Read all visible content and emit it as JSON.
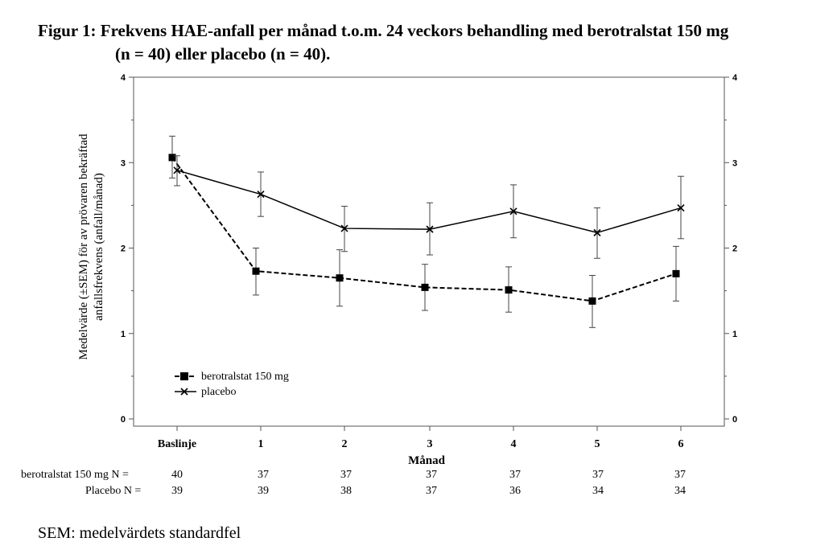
{
  "title": {
    "line1": "Figur 1: Frekvens HAE-anfall per månad t.o.m. 24 veckors behandling med berotralstat 150 mg",
    "line2": "(n = 40) eller placebo (n = 40)."
  },
  "chart_data": {
    "type": "line",
    "categories": [
      "Baslinje",
      "1",
      "2",
      "3",
      "4",
      "5",
      "6"
    ],
    "xlabel": "Månad",
    "ylabel_line1": "Medelvärde (±SEM) för av prövaren bekräftad",
    "ylabel_line2": "anfallsfrekvens (anfall/månad)",
    "ylim": [
      0,
      4
    ],
    "yticks": [
      "0",
      "1",
      "2",
      "3",
      "4"
    ],
    "legend_position": "bottom-left",
    "series": [
      {
        "name": "berotralstat 150 mg",
        "marker": "square",
        "line_style": "dashed",
        "values": [
          3.06,
          1.73,
          1.65,
          1.54,
          1.51,
          1.38,
          1.7
        ],
        "sem_low": [
          2.82,
          1.45,
          1.32,
          1.27,
          1.25,
          1.07,
          1.38
        ],
        "sem_high": [
          3.31,
          2.0,
          1.98,
          1.81,
          1.78,
          1.68,
          2.02
        ]
      },
      {
        "name": "placebo",
        "marker": "x",
        "line_style": "solid",
        "values": [
          2.91,
          2.63,
          2.23,
          2.22,
          2.43,
          2.18,
          2.47
        ],
        "sem_low": [
          2.73,
          2.37,
          1.96,
          1.92,
          2.12,
          1.88,
          2.11
        ],
        "sem_high": [
          3.08,
          2.89,
          2.49,
          2.53,
          2.74,
          2.47,
          2.84
        ]
      }
    ]
  },
  "n_table": {
    "rows": [
      {
        "label": "berotralstat 150 mg  N =",
        "values": [
          "40",
          "37",
          "37",
          "37",
          "37",
          "37",
          "37"
        ]
      },
      {
        "label": "Placebo  N =",
        "values": [
          "39",
          "39",
          "38",
          "37",
          "36",
          "34",
          "34"
        ]
      }
    ]
  },
  "footnote": "SEM: medelvärdets standardfel"
}
